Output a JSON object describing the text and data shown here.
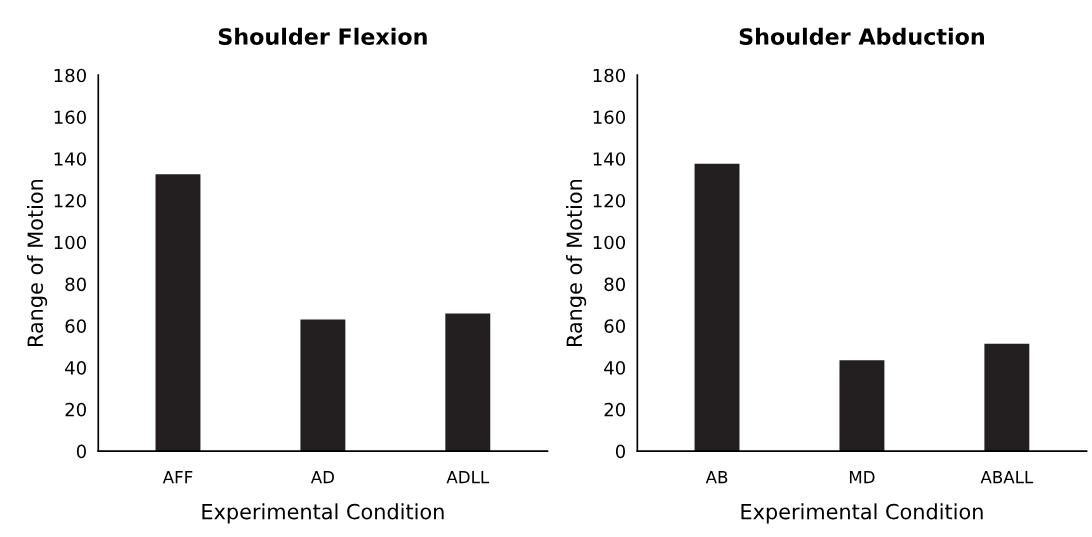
{
  "chart_data": [
    {
      "type": "bar",
      "title": "Shoulder Flexion",
      "xlabel": "Experimental Condition",
      "ylabel": "Range of Motion",
      "categories": [
        "AFF",
        "AD",
        "ADLL"
      ],
      "values": [
        132.6,
        63,
        65.9
      ],
      "color": "#231f20",
      "ylim": [
        0,
        180
      ],
      "yticks": [
        0,
        20,
        40,
        60,
        80,
        100,
        120,
        140,
        160,
        180
      ]
    },
    {
      "type": "bar",
      "title": "Shoulder Abduction",
      "xlabel": "Experimental Condition",
      "ylabel": "Range of Motion",
      "categories": [
        "AB",
        "MD",
        "ABALL"
      ],
      "values": [
        137.6,
        43.5,
        51.4
      ],
      "color": "#231f20",
      "ylim": [
        0,
        180
      ],
      "yticks": [
        0,
        20,
        40,
        60,
        80,
        100,
        120,
        140,
        160,
        180
      ]
    }
  ]
}
